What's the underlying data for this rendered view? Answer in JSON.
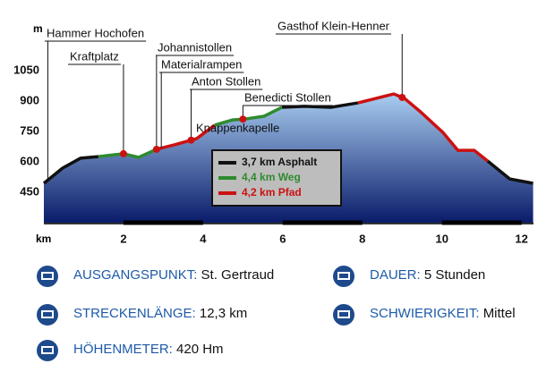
{
  "chart_data": {
    "type": "area",
    "y_label": "m",
    "x_label": "km",
    "xlim": [
      0,
      12.3
    ],
    "ylim": [
      300,
      1200
    ],
    "xticks": [
      2,
      4,
      6,
      8,
      10,
      12
    ],
    "yticks": [
      450,
      600,
      750,
      900,
      1050
    ],
    "fill_top": "#a9cdf0",
    "fill_bottom": "#0a1c6a",
    "x": [
      0,
      0.47,
      0.92,
      1.37,
      2.0,
      2.38,
      2.83,
      3.28,
      3.84,
      4.29,
      4.74,
      5.08,
      5.53,
      5.98,
      6.54,
      7.21,
      7.89,
      8.34,
      8.79,
      9.06,
      9.46,
      10.02,
      10.4,
      10.81,
      11.15,
      11.7,
      12.29
    ],
    "values": [
      494,
      569,
      618,
      626,
      640,
      622,
      662,
      684,
      715,
      781,
      807,
      812,
      825,
      869,
      874,
      869,
      891,
      913,
      935,
      913,
      847,
      746,
      657,
      657,
      604,
      516,
      494
    ],
    "series": [
      {
        "name": "3,7 km Asphalt",
        "color": "#111111",
        "values": [
          494,
          569,
          618,
          626,
          null,
          null,
          null,
          null,
          null,
          null,
          null,
          null,
          null,
          869,
          874,
          869,
          891,
          null,
          null,
          null,
          null,
          null,
          null,
          null,
          604,
          516,
          494
        ]
      },
      {
        "name": "4,4 km Weg",
        "color": "#2e8b2e",
        "values": [
          null,
          null,
          null,
          626,
          640,
          622,
          662,
          null,
          null,
          781,
          807,
          812,
          825,
          869,
          null,
          null,
          null,
          null,
          null,
          null,
          null,
          null,
          null,
          null,
          null,
          null,
          null
        ]
      },
      {
        "name": "4,2 km Pfad",
        "color": "#cc1111",
        "values": [
          null,
          null,
          null,
          null,
          null,
          null,
          662,
          684,
          715,
          781,
          null,
          null,
          null,
          null,
          null,
          null,
          891,
          913,
          935,
          913,
          847,
          746,
          657,
          657,
          604,
          null,
          null
        ]
      }
    ],
    "annotations": [
      {
        "text": "Hammer Hochofen",
        "x": 0.1
      },
      {
        "text": "Kraftplatz",
        "x": 2.0
      },
      {
        "text": "Johannistollen",
        "x": 2.83
      },
      {
        "text": "Materialrampen",
        "x": 2.95
      },
      {
        "text": "Anton Stollen",
        "x": 3.7
      },
      {
        "text": "Benedicti Stollen",
        "x": 5.0
      },
      {
        "text": "Gasthof Klein-Henner",
        "x": 9.0
      },
      {
        "text": "Knappenkapelle",
        "x": 3.84
      }
    ]
  },
  "info": [
    {
      "label": "AUSGANGSPUNKT:",
      "value": "St. Gertraud"
    },
    {
      "label": "DAUER:",
      "value": "5 Stunden"
    },
    {
      "label": "STRECKENLÄNGE:",
      "value": "12,3 km"
    },
    {
      "label": "SCHWIERIGKEIT:",
      "value": "Mittel"
    },
    {
      "label": "HÖHENMETER:",
      "value": "420 Hm"
    }
  ]
}
